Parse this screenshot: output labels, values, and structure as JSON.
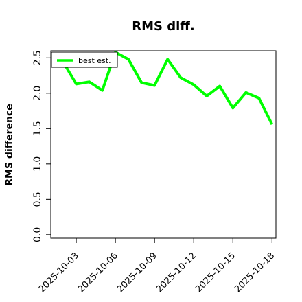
{
  "chart_data": {
    "type": "line",
    "title": "RMS diff.",
    "xlabel": "",
    "ylabel": "RMS difference",
    "x": [
      "2025-10-02",
      "2025-10-03",
      "2025-10-04",
      "2025-10-05",
      "2025-10-06",
      "2025-10-07",
      "2025-10-08",
      "2025-10-09",
      "2025-10-10",
      "2025-10-11",
      "2025-10-12",
      "2025-10-13",
      "2025-10-14",
      "2025-10-15",
      "2025-10-16",
      "2025-10-17",
      "2025-10-18"
    ],
    "x_ticks": [
      "2025-10-03",
      "2025-10-06",
      "2025-10-09",
      "2025-10-12",
      "2025-10-15",
      "2025-10-18"
    ],
    "y_ticks": [
      "0.0",
      "0.5",
      "1.0",
      "1.5",
      "2.0",
      "2.5"
    ],
    "ylim": [
      -0.05,
      2.6
    ],
    "legend": "top-left",
    "series": [
      {
        "name": "best est.",
        "color": "#00ff00",
        "values": [
          2.44,
          2.13,
          2.16,
          2.04,
          2.58,
          2.48,
          2.15,
          2.11,
          2.48,
          2.22,
          2.12,
          1.96,
          2.1,
          1.79,
          2.01,
          1.93,
          1.56
        ]
      }
    ]
  }
}
